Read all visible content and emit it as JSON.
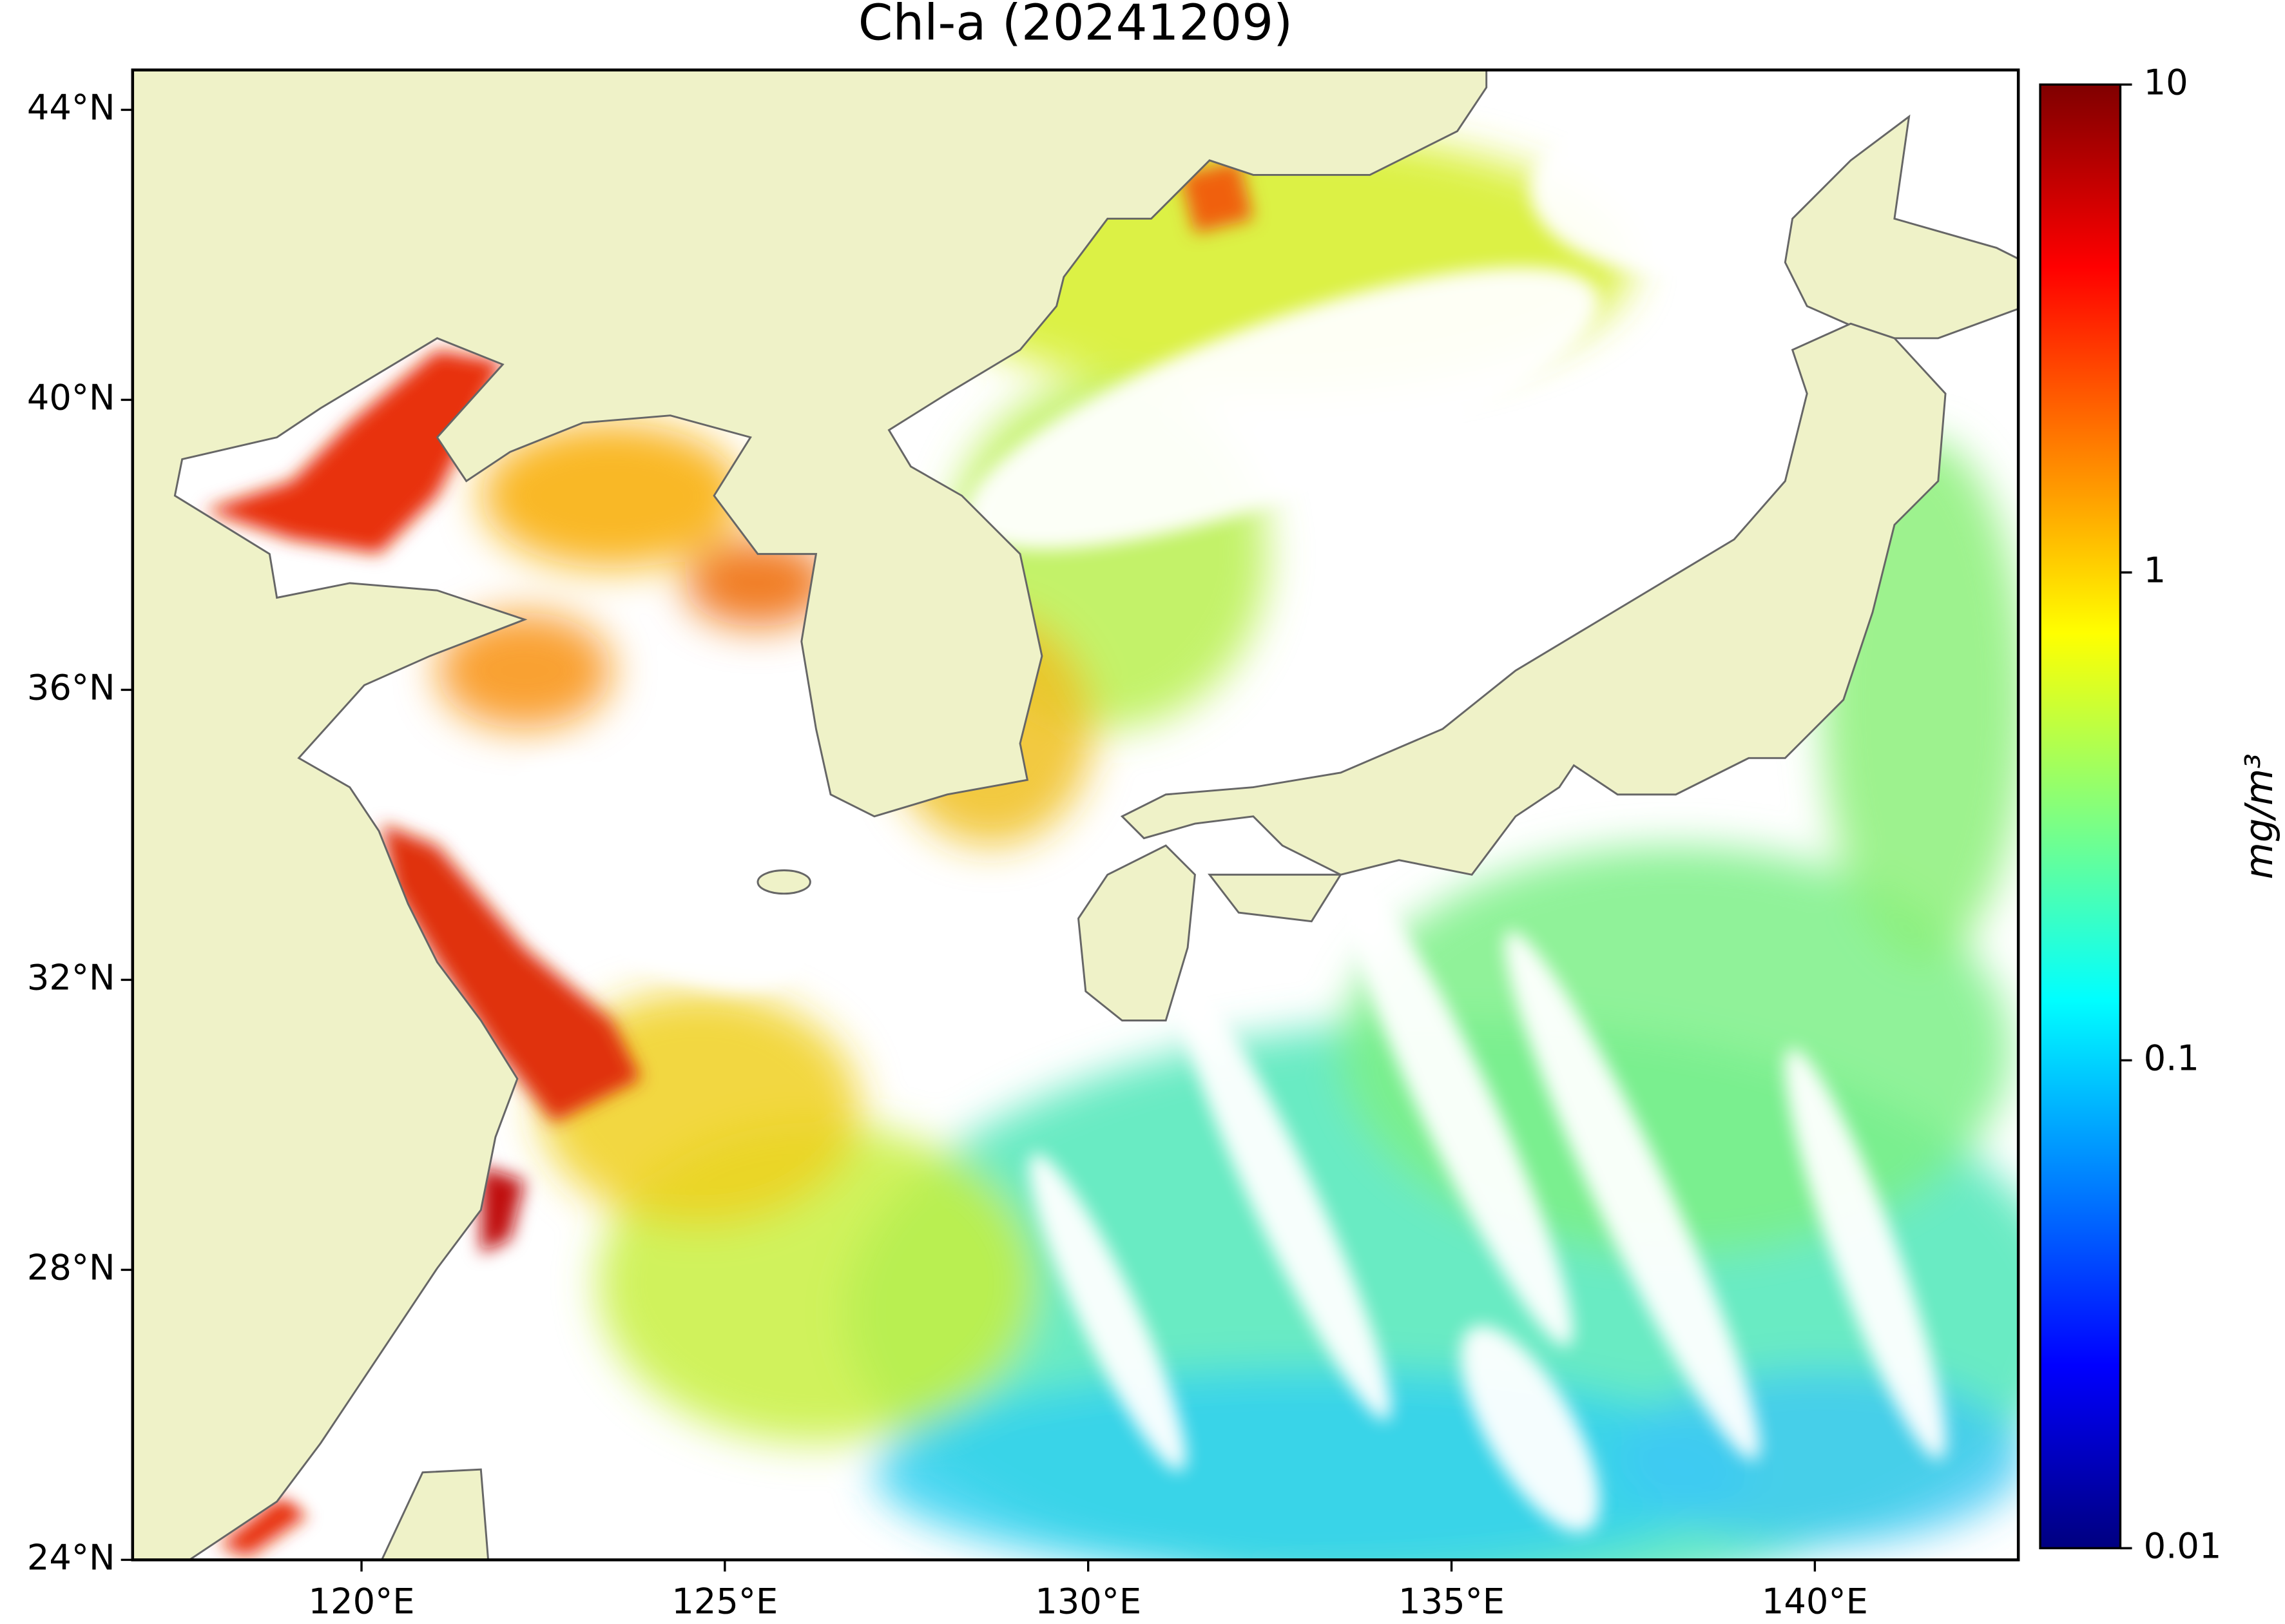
{
  "map": {
    "title": "Chl-a (20241209)",
    "lon": {
      "lim": [
        116.85,
        142.8
      ],
      "ticks": [
        {
          "value": 120,
          "label": "120°E"
        },
        {
          "value": 125,
          "label": "125°E"
        },
        {
          "value": 130,
          "label": "130°E"
        },
        {
          "value": 135,
          "label": "135°E"
        },
        {
          "value": 140,
          "label": "140°E"
        }
      ]
    },
    "lat": {
      "lim": [
        24,
        44.55
      ],
      "ticks": [
        {
          "value": 24,
          "label": "24°N"
        },
        {
          "value": 28,
          "label": "28°N"
        },
        {
          "value": 32,
          "label": "32°N"
        },
        {
          "value": 36,
          "label": "36°N"
        },
        {
          "value": 40,
          "label": "40°N"
        },
        {
          "value": 44,
          "label": "44°N"
        }
      ]
    },
    "colorbar": {
      "label": "mg/m³",
      "scale": "log",
      "colormap": "jet",
      "lim": [
        0.01,
        10
      ],
      "ticks": [
        0.01,
        0.1,
        1,
        10
      ]
    }
  }
}
